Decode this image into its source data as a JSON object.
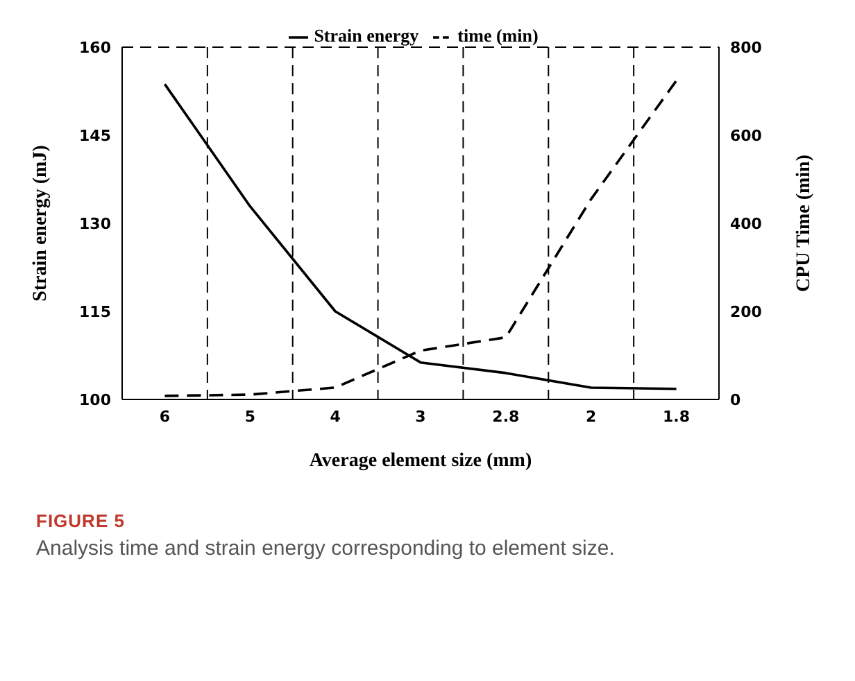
{
  "chart_data": {
    "type": "line",
    "xlabel": "Average element size (mm)",
    "ylabel": "Strain energy (mJ)",
    "y2label": "CPU Time (min)",
    "categories": [
      "6",
      "5",
      "4",
      "3",
      "2.8",
      "2",
      "1.8"
    ],
    "series": [
      {
        "name": "Strain energy",
        "color": "#000000",
        "line_style": "solid",
        "values": [
          153.7,
          132.9,
          115,
          106.3,
          104.5,
          102,
          101.8
        ]
      },
      {
        "name": "time (min)",
        "color": "#000000",
        "line_style": "dashed",
        "axis": "y2",
        "values": [
          8,
          11,
          27,
          111,
          141,
          455,
          724
        ]
      }
    ],
    "ylim": [
      100,
      160
    ],
    "yticks": [
      100,
      115,
      130,
      145,
      160
    ],
    "y2lim": [
      0,
      800
    ],
    "y2ticks": [
      0,
      200,
      400,
      600,
      800
    ],
    "grid": true,
    "legend": "top",
    "marker": "none",
    "annotations": [
      "FIGURE 5",
      "Analysis time and strain energy corresponding to element size."
    ]
  }
}
